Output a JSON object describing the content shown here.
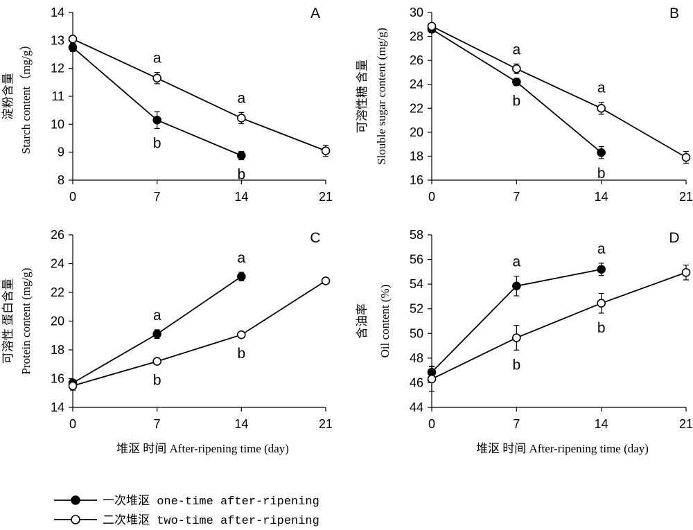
{
  "chart_data": [
    {
      "type": "line",
      "panel_label": "A",
      "ylabel_cn": "淀粉含量",
      "ylabel": "Starch content（mg/g）",
      "xlabel": "",
      "x": [
        0,
        7,
        14,
        21
      ],
      "x_ticks": [
        "0",
        "7",
        "14",
        "21"
      ],
      "ylim": [
        8,
        14
      ],
      "y_ticks": [
        "8",
        "9",
        "10",
        "11",
        "12",
        "13",
        "14"
      ],
      "series": [
        {
          "name": "一次堆沤 one-time after-ripening",
          "marker": "filled",
          "values": [
            12.75,
            10.15,
            8.88,
            null
          ],
          "errors": [
            0.15,
            0.3,
            0.15,
            null
          ],
          "sig": [
            "",
            "b",
            "b",
            ""
          ]
        },
        {
          "name": "二次堆沤 two-time after-ripening",
          "marker": "open",
          "values": [
            13.05,
            11.65,
            10.22,
            9.05
          ],
          "errors": [
            0.1,
            0.2,
            0.2,
            0.2
          ],
          "sig": [
            "",
            "a",
            "a",
            ""
          ]
        }
      ]
    },
    {
      "type": "line",
      "panel_label": "B",
      "ylabel_cn": "可溶性糖 含量",
      "ylabel": "Slouble sugar content (mg/g)",
      "xlabel": "",
      "x": [
        0,
        7,
        14,
        21
      ],
      "x_ticks": [
        "0",
        "7",
        "14",
        "21"
      ],
      "ylim": [
        16,
        30
      ],
      "y_ticks": [
        "16",
        "18",
        "20",
        "22",
        "24",
        "26",
        "28",
        "30"
      ],
      "series": [
        {
          "name": "一次堆沤 one-time after-ripening",
          "marker": "filled",
          "values": [
            28.6,
            24.2,
            18.3,
            null
          ],
          "errors": [
            0.3,
            0.3,
            0.5,
            null
          ],
          "sig": [
            "",
            "b",
            "b",
            ""
          ]
        },
        {
          "name": "二次堆沤 two-time after-ripening",
          "marker": "open",
          "values": [
            28.85,
            25.3,
            22.0,
            17.9
          ],
          "errors": [
            0.2,
            0.4,
            0.5,
            0.5
          ],
          "sig": [
            "",
            "a",
            "a",
            ""
          ]
        }
      ]
    },
    {
      "type": "line",
      "panel_label": "C",
      "ylabel_cn": "可溶性 蛋白含量",
      "ylabel": "Protein content (mg/g)",
      "xlabel": "堆沤 时间 After-ripening time (day)",
      "x": [
        0,
        7,
        14,
        21
      ],
      "x_ticks": [
        "0",
        "7",
        "14",
        "21"
      ],
      "ylim": [
        14,
        26
      ],
      "y_ticks": [
        "14",
        "16",
        "18",
        "20",
        "22",
        "24",
        "26"
      ],
      "series": [
        {
          "name": "一次堆沤 one-time after-ripening",
          "marker": "filled",
          "values": [
            15.7,
            19.1,
            23.1,
            null
          ],
          "errors": [
            0.2,
            0.3,
            0.3,
            null
          ],
          "sig": [
            "",
            "a",
            "a",
            ""
          ]
        },
        {
          "name": "二次堆沤 two-time after-ripening",
          "marker": "open",
          "values": [
            15.5,
            17.2,
            19.05,
            22.8
          ],
          "errors": [
            0.3,
            0.2,
            0.2,
            0.2
          ],
          "sig": [
            "",
            "b",
            "b",
            ""
          ]
        }
      ]
    },
    {
      "type": "line",
      "panel_label": "D",
      "ylabel_cn": "含油率",
      "ylabel": "Oil content (%)",
      "xlabel": "堆沤 时间 After-ripening time (day)",
      "x": [
        0,
        7,
        14,
        21
      ],
      "x_ticks": [
        "0",
        "7",
        "14",
        "21"
      ],
      "ylim": [
        44,
        58
      ],
      "y_ticks": [
        "44",
        "46",
        "48",
        "50",
        "52",
        "54",
        "56",
        "58"
      ],
      "series": [
        {
          "name": "一次堆沤 one-time after-ripening",
          "marker": "filled",
          "values": [
            46.85,
            53.85,
            55.2,
            null
          ],
          "errors": [
            0.5,
            0.8,
            0.5,
            null
          ],
          "sig": [
            "",
            "a",
            "a",
            ""
          ]
        },
        {
          "name": "二次堆沤 two-time after-ripening",
          "marker": "open",
          "values": [
            46.3,
            49.65,
            52.45,
            54.95
          ],
          "errors": [
            1.0,
            1.0,
            0.8,
            0.6
          ],
          "sig": [
            "",
            "b",
            "b",
            ""
          ]
        }
      ]
    }
  ],
  "legend": {
    "items": [
      {
        "marker": "filled",
        "label": "一次堆沤 one-time after-ripening"
      },
      {
        "marker": "open",
        "label": "二次堆沤 two-time after-ripening"
      }
    ]
  }
}
